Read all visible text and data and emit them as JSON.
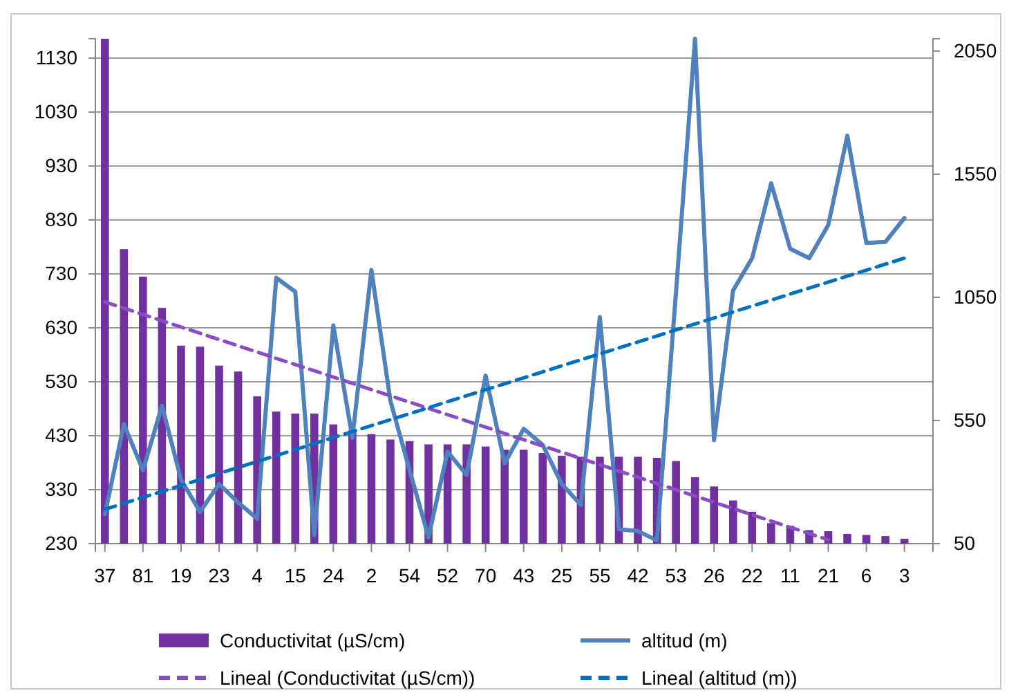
{
  "chart_data": {
    "type": "bar",
    "categories": [
      "37",
      null,
      "81",
      null,
      "19",
      null,
      "23",
      null,
      "4",
      null,
      "15",
      null,
      "24",
      null,
      "2",
      null,
      "54",
      null,
      "52",
      null,
      "70",
      null,
      "43",
      null,
      "25",
      null,
      "55",
      null,
      "42",
      null,
      "53",
      null,
      "26",
      null,
      "22",
      null,
      "11",
      null,
      "21",
      null,
      "6",
      null,
      "3",
      null
    ],
    "series": [
      {
        "name": "Conductivitat (µS/cm)",
        "color": "#7030a0",
        "values": [
          1166,
          776,
          725,
          667,
          597,
          595,
          560,
          549,
          503,
          475,
          471,
          471,
          451,
          440,
          433,
          423,
          420,
          414,
          414,
          414,
          410,
          404,
          404,
          398,
          393,
          391,
          391,
          391,
          391,
          389,
          383,
          353,
          336,
          310,
          289,
          268,
          263,
          255,
          253,
          248,
          246,
          244,
          239,
          null
        ]
      },
      {
        "name": "altitud (m)",
        "type": "line",
        "axis": "y2",
        "color": "#4f81bd",
        "line_style": "solid",
        "values": [
          170,
          535,
          348,
          610,
          310,
          179,
          292,
          217,
          151,
          1129,
          1073,
          85,
          936,
          479,
          1161,
          629,
          350,
          76,
          423,
          329,
          732,
          376,
          516,
          451,
          292,
          207,
          970,
          108,
          101,
          63,
          1070,
          2100,
          470,
          1078,
          1209,
          1513,
          1247,
          1209,
          1344,
          1706,
          1271,
          1275,
          1372,
          null
        ]
      },
      {
        "name": "Lineal (Conductivitat (µS/cm))",
        "type": "line",
        "color": "#8a4cc4",
        "line_style": "dashed",
        "x": [
          "37",
          "21"
        ],
        "values": [
          678,
          237
        ]
      },
      {
        "name": "Lineal (altitud (m))",
        "type": "line",
        "axis": "y2",
        "color": "#0070c0",
        "line_style": "dashed",
        "x": [
          "37",
          "3"
        ],
        "values": [
          189,
          1209
        ]
      }
    ],
    "ylim": [
      230,
      1166
    ],
    "yticks": [
      230,
      330,
      430,
      530,
      630,
      730,
      830,
      930,
      1030,
      1130
    ],
    "y2lim": [
      50,
      2100
    ],
    "y2ticks": [
      50,
      550,
      1050,
      1550,
      2050
    ],
    "grid": "y",
    "legend": "bottom",
    "marker": "none"
  }
}
